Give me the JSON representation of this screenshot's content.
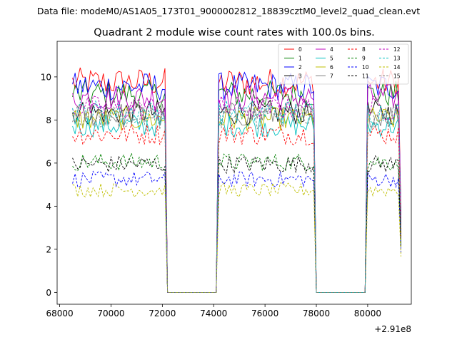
{
  "header": {
    "data_file_text": "Data file: modeM0/AS1A05_173T01_9000002812_18839cztM0_level2_quad_clean.evt"
  },
  "chart_data": {
    "type": "line",
    "title": "Quadrant 2 module wise count rates with 100.0s bins.",
    "xlabel": "",
    "ylabel": "",
    "x_offset_label": "+2.91e8",
    "xlim": [
      67900,
      81700
    ],
    "ylim": [
      -0.55,
      11.65
    ],
    "x_ticks": [
      68000,
      70000,
      72000,
      74000,
      76000,
      78000,
      80000
    ],
    "x_tick_labels": [
      "68000",
      "70000",
      "72000",
      "74000",
      "76000",
      "78000",
      "80000"
    ],
    "y_ticks": [
      0,
      2,
      4,
      6,
      8,
      10
    ],
    "y_tick_labels": [
      "0",
      "2",
      "4",
      "6",
      "8",
      "10"
    ],
    "legend": {
      "placement": "top-right",
      "ncol": 4
    },
    "segments": [
      {
        "start": 68500,
        "end": 72100
      },
      {
        "start": 74200,
        "end": 77900
      },
      {
        "start": 80000,
        "end": 81300
      }
    ],
    "gap_value": 0,
    "bin_seconds": 100,
    "series": [
      {
        "name": "0",
        "color": "#ff0000",
        "dash": "solid",
        "level": 9.75
      },
      {
        "name": "1",
        "color": "#008000",
        "dash": "solid",
        "level": 9.2
      },
      {
        "name": "2",
        "color": "#0000ff",
        "dash": "solid",
        "level": 9.55
      },
      {
        "name": "3",
        "color": "#000000",
        "dash": "solid",
        "level": 8.35
      },
      {
        "name": "4",
        "color": "#bf00bf",
        "dash": "solid",
        "level": 9.05
      },
      {
        "name": "5",
        "color": "#00bfbf",
        "dash": "solid",
        "level": 7.75
      },
      {
        "name": "6",
        "color": "#bfbf00",
        "dash": "solid",
        "level": 8.05
      },
      {
        "name": "7",
        "color": "#808080",
        "dash": "solid",
        "level": 8.25
      },
      {
        "name": "8",
        "color": "#ff0000",
        "dash": "dashed",
        "level": 7.35
      },
      {
        "name": "9",
        "color": "#008000",
        "dash": "dashed",
        "level": 6.05
      },
      {
        "name": "10",
        "color": "#0000ff",
        "dash": "dashed",
        "level": 5.25
      },
      {
        "name": "11",
        "color": "#000000",
        "dash": "dashed",
        "level": 5.95
      },
      {
        "name": "12",
        "color": "#bf00bf",
        "dash": "dashed",
        "level": 8.55
      },
      {
        "name": "13",
        "color": "#00bfbf",
        "dash": "dashed",
        "level": 8.35
      },
      {
        "name": "14",
        "color": "#bfbf00",
        "dash": "dashed",
        "level": 4.75
      },
      {
        "name": "15",
        "color": "#808080",
        "dash": "dashed",
        "level": 8.15
      }
    ]
  }
}
